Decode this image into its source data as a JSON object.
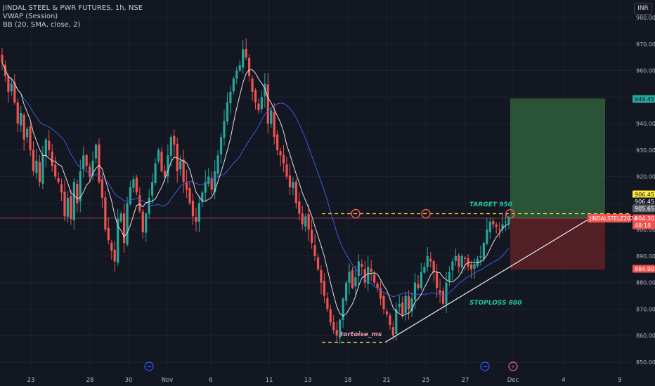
{
  "legend": {
    "title": "JINDAL STEEL & PWR FUTURES, 1h, NSE",
    "indicator1": "VWAP (Session)",
    "indicator2": "BB (20, SMA, close, 2)"
  },
  "currency": "INR",
  "colors": {
    "background": "#131722",
    "up": "#26a69a",
    "down": "#ef5350",
    "vwap": "#3a5bd9",
    "bb_basis": "#e0e0e0",
    "target_zone": "#2e5a3a",
    "stop_zone": "#5a2028",
    "dashed": "#ffeb3b",
    "price_line": "#ef5350",
    "grid": "#1e222d",
    "axis_text": "#b2b5be"
  },
  "chart_data": {
    "type": "candlestick",
    "title": "JINDAL STEEL & PWR FUTURES, 1h, NSE",
    "y_axis": {
      "min": 850,
      "max": 980,
      "ticks": [
        850,
        860,
        870,
        880,
        890,
        900,
        910,
        920,
        930,
        940,
        950,
        960,
        970,
        980
      ],
      "scale": "linear",
      "grid": true
    },
    "x_axis": {
      "labels": [
        "23",
        "28",
        "30",
        "Nov",
        "6",
        "11",
        "13",
        "18",
        "21",
        "25",
        "27",
        "Dec",
        "4",
        "9"
      ]
    },
    "price_tags": [
      {
        "value": "949.45",
        "bg": "#26a69a",
        "fg": "#131722"
      },
      {
        "value": "906.45",
        "bg": "#ffeb3b",
        "fg": "#131722"
      },
      {
        "value": "906.45",
        "bg": "#131722",
        "fg": "#ffffff"
      },
      {
        "value": "905.65",
        "bg": "#5d606b",
        "fg": "#ffffff"
      },
      {
        "value": "904.30",
        "bg": "#ef5350",
        "fg": "#ffffff"
      },
      {
        "value": "48:18",
        "bg": "#ef5350",
        "fg": "#ffffff"
      },
      {
        "value": "884.90",
        "bg": "#ef5350",
        "fg": "#ffffff"
      }
    ],
    "symbol_tag": "JINDALSTELZ2024",
    "annotations": {
      "target": "TARGET 950",
      "stoploss": "STOPLOSS 880",
      "author": "tortoise_ms"
    },
    "levels": {
      "resistance": 906.0,
      "support_low": 857.5,
      "target": 949.45,
      "stop": 884.9,
      "entry": 904.3,
      "current": 904.3
    },
    "closes": [
      963,
      958,
      952,
      955,
      948,
      940,
      944,
      934,
      938,
      930,
      922,
      926,
      918,
      928,
      934,
      930,
      924,
      920,
      918,
      914,
      905,
      912,
      904,
      918,
      910,
      922,
      928,
      924,
      920,
      926,
      932,
      918,
      912,
      900,
      896,
      892,
      888,
      904,
      906,
      895,
      910,
      916,
      919,
      914,
      907,
      899,
      906,
      912,
      918,
      925,
      930,
      922,
      920,
      928,
      935,
      932,
      922,
      926,
      918,
      915,
      910,
      905,
      903,
      910,
      914,
      918,
      920,
      915,
      922,
      928,
      935,
      941,
      948,
      952,
      957,
      960,
      962,
      968,
      965,
      958,
      952,
      948,
      945,
      950,
      955,
      940,
      945,
      935,
      930,
      928,
      925,
      920,
      916,
      918,
      910,
      906,
      902,
      905,
      900,
      895,
      890,
      885,
      880,
      875,
      870,
      865,
      862,
      860,
      866,
      874,
      880,
      884,
      878,
      882,
      888,
      886,
      880,
      886,
      884,
      880,
      878,
      874,
      870,
      868,
      864,
      860,
      870,
      872,
      868,
      875,
      870,
      874,
      880,
      878,
      884,
      886,
      890,
      888,
      884,
      878,
      876,
      872,
      880,
      884,
      888,
      890,
      886,
      890,
      889,
      886,
      885,
      887,
      889,
      890,
      895,
      900,
      903,
      902,
      901,
      900,
      902,
      903,
      904.3
    ]
  }
}
